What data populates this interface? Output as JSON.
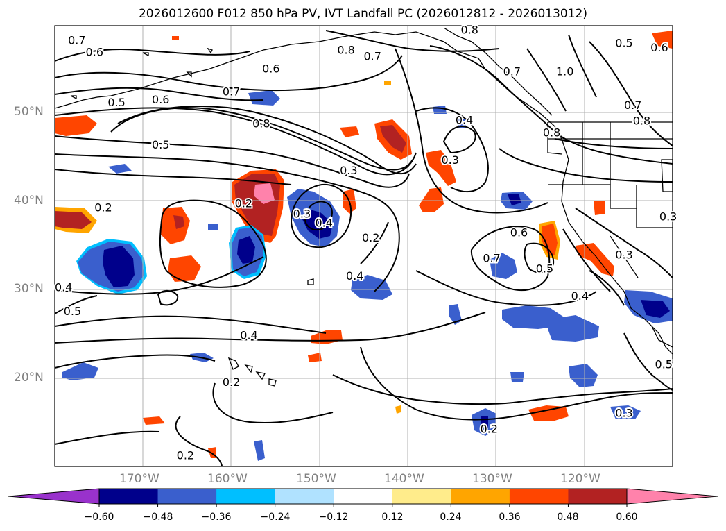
{
  "title": "2026012600 F012 850 hPa PV, IVT Landfall PC (2026012812 - 2026013012)",
  "lat_labels": [
    "50°N",
    "40°N",
    "30°N",
    "20°N"
  ],
  "lon_labels": [
    "170°W",
    "160°W",
    "150°W",
    "140°W",
    "130°W",
    "120°W"
  ],
  "colorbar": {
    "ticks": [
      "−0.60",
      "−0.48",
      "−0.36",
      "−0.24",
      "−0.12",
      "0.12",
      "0.24",
      "0.36",
      "0.48",
      "0.60"
    ],
    "colors": [
      "#9932cc",
      "#00008b",
      "#3a5fcd",
      "#00bfff",
      "#b0e2ff",
      "#ffffff",
      "#ffec8b",
      "#ffa500",
      "#ff4500",
      "#b22222",
      "#ff82ab"
    ]
  },
  "contour_labels": [
    {
      "text": "0.7",
      "lon": -177.5,
      "lat": 58.5
    },
    {
      "text": "0.6",
      "lon": -175.5,
      "lat": 57.2
    },
    {
      "text": "0.6",
      "lon": -155.5,
      "lat": 55.3
    },
    {
      "text": "0.8",
      "lon": -147,
      "lat": 57.4
    },
    {
      "text": "0.7",
      "lon": -144,
      "lat": 56.7
    },
    {
      "text": "0.8",
      "lon": -133,
      "lat": 59.7
    },
    {
      "text": "0.7",
      "lon": -128.2,
      "lat": 55
    },
    {
      "text": "1.0",
      "lon": -122.2,
      "lat": 55
    },
    {
      "text": "0.5",
      "lon": -115.5,
      "lat": 58.2
    },
    {
      "text": "0.6",
      "lon": -111.5,
      "lat": 57.7
    },
    {
      "text": "0.6",
      "lon": -168,
      "lat": 51.8
    },
    {
      "text": "0.5",
      "lon": -173,
      "lat": 51.5
    },
    {
      "text": "0.7",
      "lon": -160,
      "lat": 52.7
    },
    {
      "text": "0.8",
      "lon": -156.6,
      "lat": 49.1
    },
    {
      "text": "0.5",
      "lon": -168,
      "lat": 46.7
    },
    {
      "text": "0.3",
      "lon": -146.7,
      "lat": 43.8
    },
    {
      "text": "0.4",
      "lon": -133.6,
      "lat": 49.5
    },
    {
      "text": "0.3",
      "lon": -135.2,
      "lat": 45
    },
    {
      "text": "0.8",
      "lon": -123.7,
      "lat": 48.1
    },
    {
      "text": "0.8",
      "lon": -113.5,
      "lat": 49.4
    },
    {
      "text": "0.7",
      "lon": -114.5,
      "lat": 51.2
    },
    {
      "text": "0.2",
      "lon": -174.5,
      "lat": 39.6
    },
    {
      "text": "0.2",
      "lon": -158.6,
      "lat": 40.1
    },
    {
      "text": "0.3",
      "lon": -152,
      "lat": 38.9
    },
    {
      "text": "0.4",
      "lon": -149.5,
      "lat": 37.9
    },
    {
      "text": "0.2",
      "lon": -144.2,
      "lat": 36.2
    },
    {
      "text": "0.6",
      "lon": -127.4,
      "lat": 36.8
    },
    {
      "text": "0.7",
      "lon": -130.5,
      "lat": 33.9
    },
    {
      "text": "0.5",
      "lon": -124.5,
      "lat": 32.7
    },
    {
      "text": "0.3",
      "lon": -115.5,
      "lat": 34.3
    },
    {
      "text": "0.4",
      "lon": -120.5,
      "lat": 29.6
    },
    {
      "text": "0.3",
      "lon": -110.5,
      "lat": 38.6
    },
    {
      "text": "0.4",
      "lon": -179,
      "lat": 30.6
    },
    {
      "text": "0.5",
      "lon": -178,
      "lat": 27.9
    },
    {
      "text": "0.4",
      "lon": -146,
      "lat": 31.9
    },
    {
      "text": "0.4",
      "lon": -158,
      "lat": 25.2
    },
    {
      "text": "0.2",
      "lon": -160,
      "lat": 19.9
    },
    {
      "text": "0.2",
      "lon": -130.8,
      "lat": 14.6
    },
    {
      "text": "0.3",
      "lon": -115.5,
      "lat": 16.4
    },
    {
      "text": "0.5",
      "lon": -111,
      "lat": 21.9
    },
    {
      "text": "0.2",
      "lon": -165.2,
      "lat": 11.6
    }
  ]
}
